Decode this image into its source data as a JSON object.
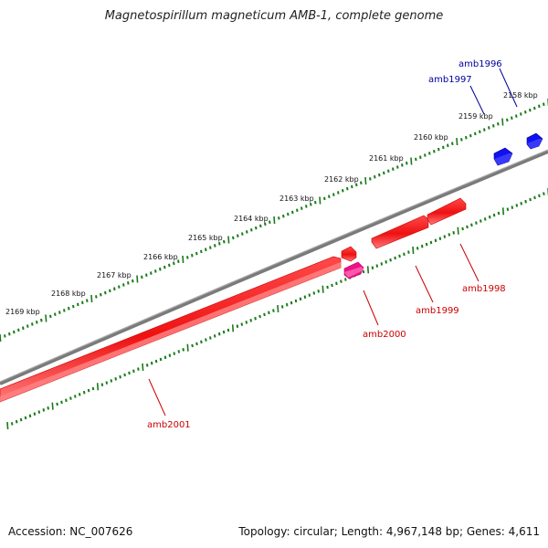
{
  "title": "Magnetospirillum magneticum AMB-1, complete genome",
  "footer": {
    "accession": "Accession: NC_007626",
    "summary": "Topology: circular; Length: 4,967,148 bp; Genes: 4,611"
  },
  "colors": {
    "backbone": "#808080",
    "tick": "#1a7a1a",
    "gene_red": "#ee1111",
    "gene_pink": "#ee1188",
    "gene_blue": "#1111ee",
    "label_red": "#cc0000",
    "label_blue": "#000099",
    "scale_text": "#111111"
  },
  "scale": {
    "unit": "kbp",
    "labels": [
      "2158 kbp",
      "2159 kbp",
      "2160 kbp",
      "2161 kbp",
      "2162 kbp",
      "2163 kbp",
      "2164 kbp",
      "2165 kbp",
      "2166 kbp",
      "2167 kbp",
      "2168 kbp",
      "2169 kbp"
    ]
  },
  "genes": [
    {
      "name": "amb1996",
      "color": "blue",
      "strand": "+"
    },
    {
      "name": "amb1997",
      "color": "blue",
      "strand": "+"
    },
    {
      "name": "amb1998",
      "color": "red",
      "strand": "-"
    },
    {
      "name": "amb1999",
      "color": "red",
      "strand": "-"
    },
    {
      "name": "amb2000",
      "color": "pink",
      "strand": "-"
    },
    {
      "name": "amb2001",
      "color": "red",
      "strand": "-"
    }
  ]
}
